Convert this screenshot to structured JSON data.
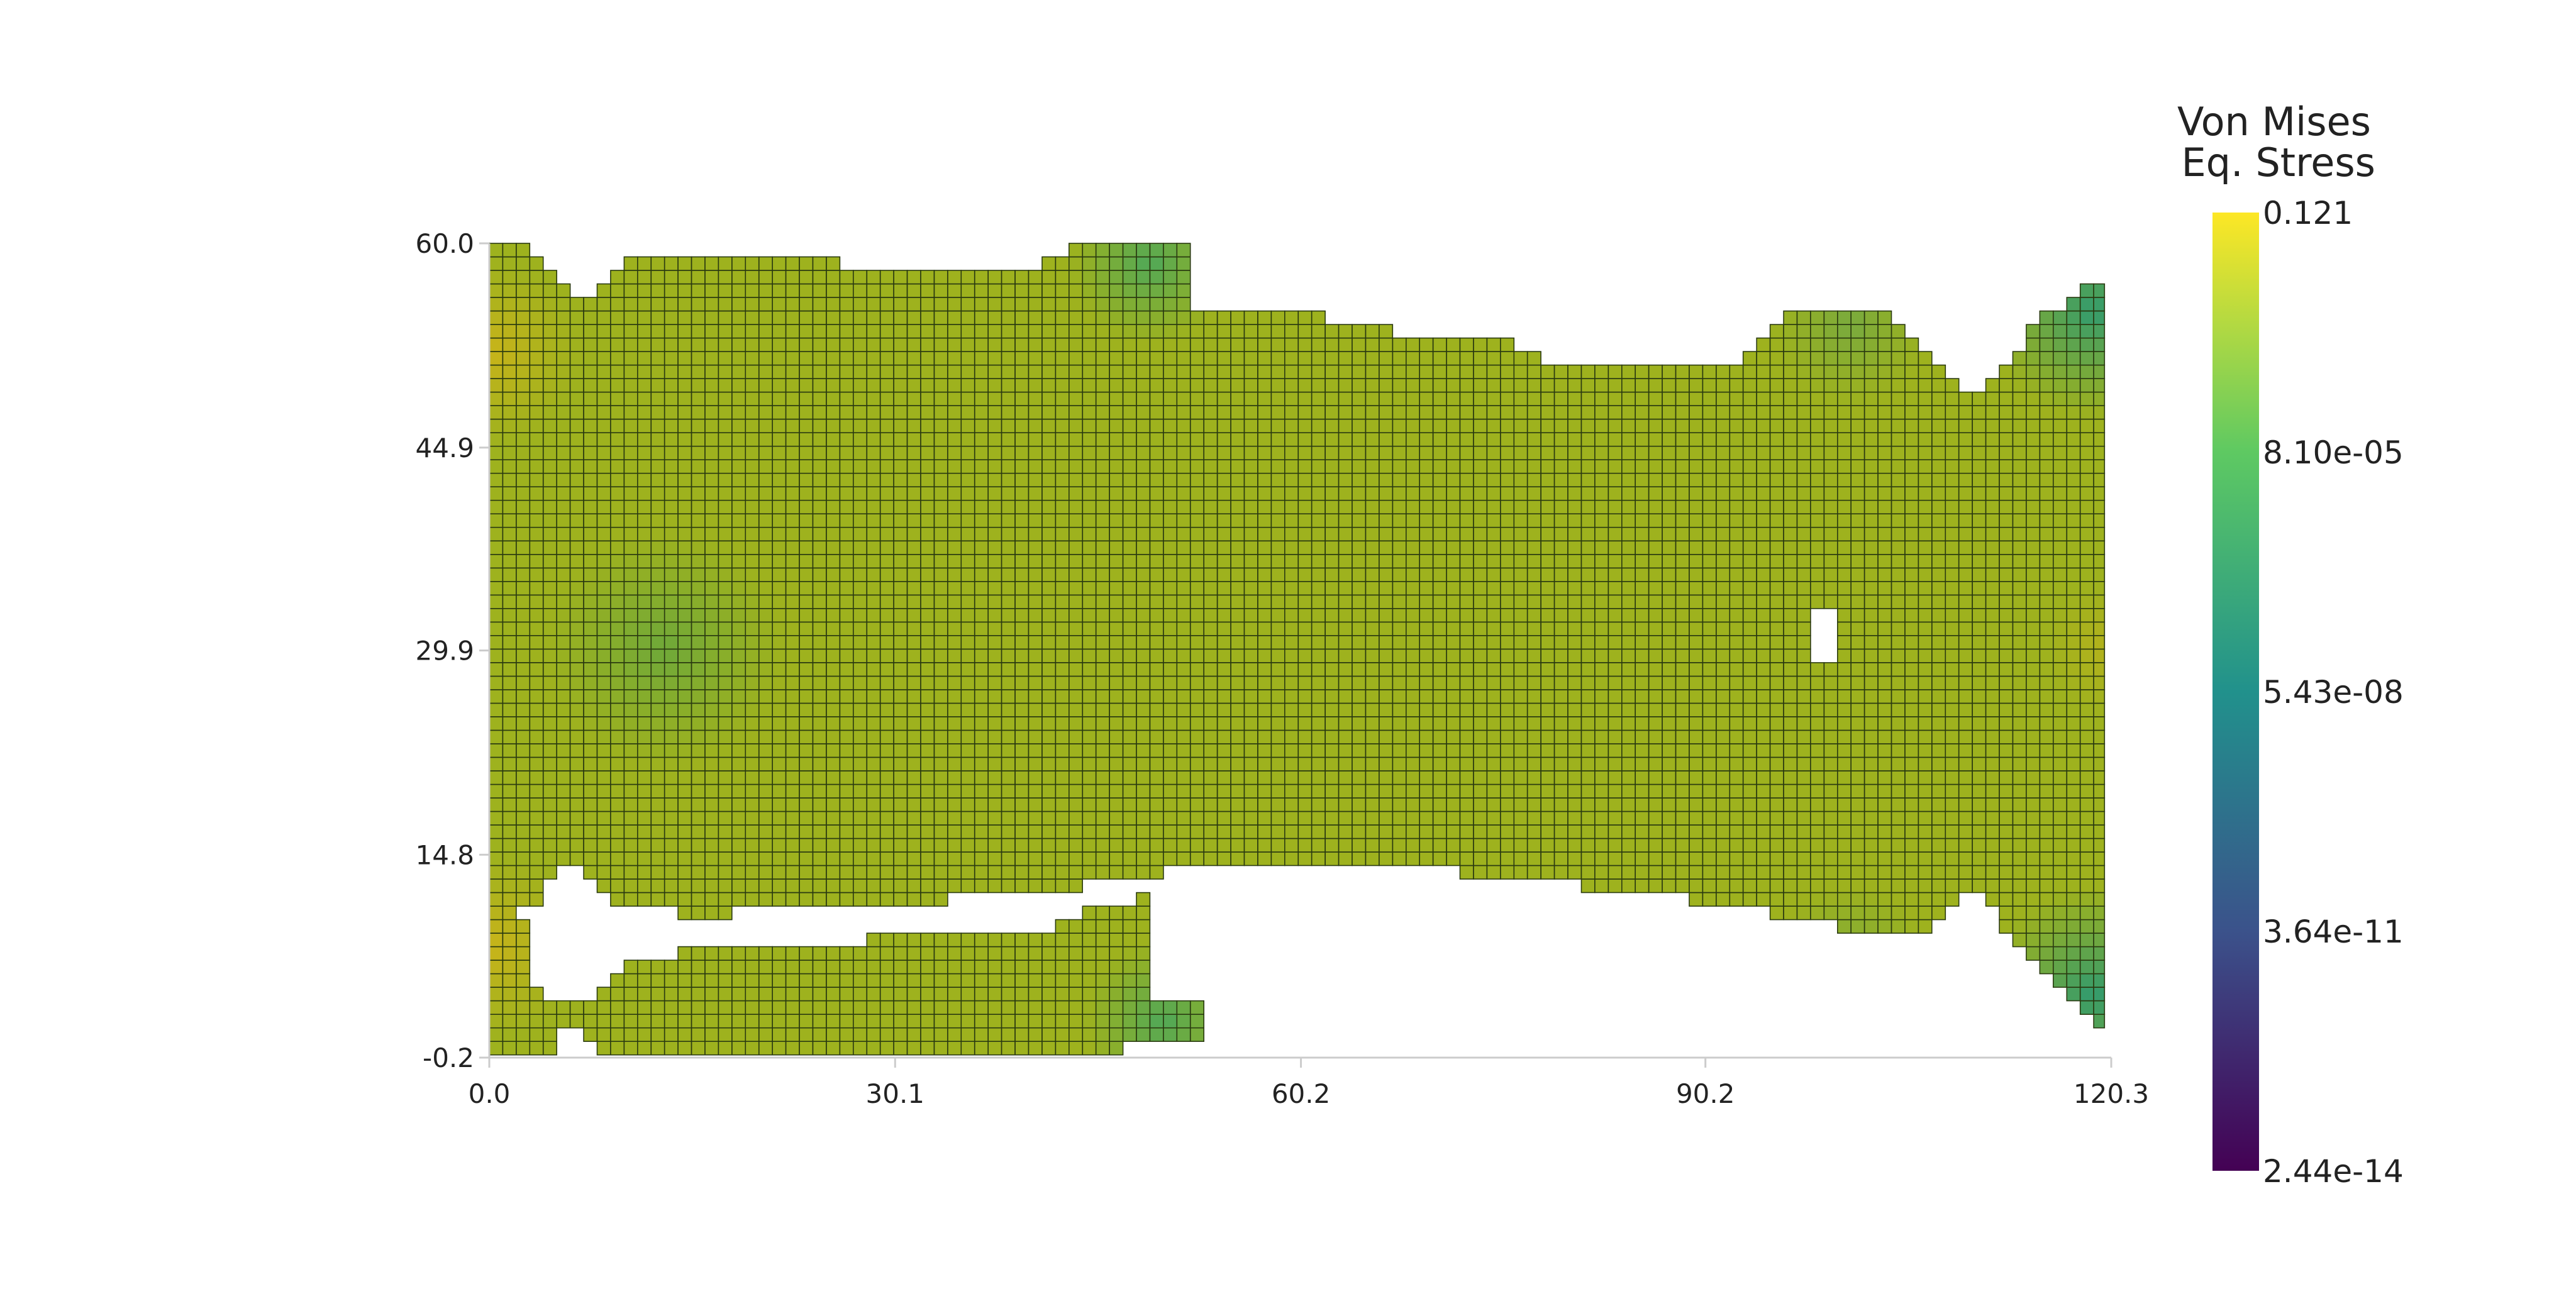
{
  "chart_data": {
    "type": "heatmap",
    "title": "",
    "xlabel": "",
    "ylabel": "",
    "xlim": [
      0.0,
      120.3
    ],
    "ylim": [
      -0.2,
      60.0
    ],
    "x_ticks": [
      "0.0",
      "30.1",
      "60.2",
      "90.2",
      "120.3"
    ],
    "y_ticks": [
      "60.0",
      "44.9",
      "29.9",
      "14.8",
      "-0.2"
    ],
    "colorbar": {
      "title_lines": [
        "Von Mises",
        "Eq. Stress"
      ],
      "labels": [
        "0.121",
        "8.10e-05",
        "5.43e-08",
        "3.64e-11",
        "2.44e-14"
      ],
      "min": 2.44e-14,
      "max": 0.121,
      "scale": "log",
      "colormap": [
        "#440154",
        "#3b528b",
        "#21918c",
        "#5ec962",
        "#fde725"
      ]
    },
    "mesh": {
      "element_size": 1.0,
      "edge_color": "#2a3a10",
      "top_profile": [
        [
          0,
          60.0
        ],
        [
          2,
          60.0
        ],
        [
          3,
          59.2
        ],
        [
          4,
          58.4
        ],
        [
          5,
          57.6
        ],
        [
          6,
          56.2
        ],
        [
          7,
          55.2
        ],
        [
          8,
          56.4
        ],
        [
          9,
          57.6
        ],
        [
          10,
          58.2
        ],
        [
          11,
          59.0
        ],
        [
          13,
          59.3
        ],
        [
          24,
          59.3
        ],
        [
          25,
          58.8
        ],
        [
          26,
          58.4
        ],
        [
          34,
          58.4
        ],
        [
          38,
          58.0
        ],
        [
          40,
          57.8
        ],
        [
          41,
          58.2
        ],
        [
          42,
          59.0
        ],
        [
          43,
          59.4
        ],
        [
          44,
          60.0
        ],
        [
          52,
          60.0
        ],
        [
          51,
          59.4
        ],
        [
          50,
          58.6
        ],
        [
          49,
          57.8
        ],
        [
          48,
          57.0
        ],
        [
          49,
          55.3
        ],
        [
          53,
          55.3
        ],
        [
          54,
          55.0
        ],
        [
          58,
          55.0
        ],
        [
          62,
          54.6
        ],
        [
          68,
          53.3
        ],
        [
          72,
          53.0
        ],
        [
          76,
          52.6
        ],
        [
          78,
          51.5
        ],
        [
          84,
          51.0
        ],
        [
          92,
          50.8
        ],
        [
          93,
          51.2
        ],
        [
          94,
          52.6
        ],
        [
          95,
          53.3
        ],
        [
          96,
          54.3
        ],
        [
          97,
          55.3
        ],
        [
          100,
          55.3
        ],
        [
          102,
          55.0
        ],
        [
          104,
          54.5
        ],
        [
          105,
          53.5
        ],
        [
          106,
          52.5
        ],
        [
          107,
          51.5
        ],
        [
          108,
          50.0
        ],
        [
          109,
          49.2
        ],
        [
          110,
          48.5
        ],
        [
          111,
          49.0
        ],
        [
          112,
          50.5
        ],
        [
          113,
          51.8
        ],
        [
          114,
          53.0
        ],
        [
          115,
          54.2
        ],
        [
          116,
          55.0
        ],
        [
          117,
          55.5
        ],
        [
          118,
          56.5
        ],
        [
          119,
          57.2
        ],
        [
          119.8,
          57.5
        ]
      ],
      "bottom_profile": [
        [
          0,
          10.0
        ],
        [
          1,
          9.5
        ],
        [
          2,
          10.5
        ],
        [
          3,
          11.0
        ],
        [
          4,
          12.0
        ],
        [
          5,
          13.2
        ],
        [
          6,
          14.8
        ],
        [
          7,
          13.8
        ],
        [
          8,
          12.5
        ],
        [
          9,
          11.4
        ],
        [
          11,
          11.0
        ],
        [
          14,
          10.5
        ],
        [
          18,
          10.5
        ],
        [
          21,
          10.6
        ],
        [
          24,
          11.0
        ],
        [
          27,
          11.3
        ],
        [
          30,
          11.4
        ],
        [
          34,
          11.5
        ],
        [
          40,
          11.8
        ],
        [
          44,
          12.4
        ],
        [
          48,
          13.3
        ],
        [
          52,
          13.7
        ],
        [
          60,
          14.0
        ],
        [
          66,
          14.2
        ],
        [
          70,
          14.0
        ],
        [
          76,
          12.8
        ],
        [
          84,
          12.3
        ],
        [
          88,
          11.7
        ],
        [
          94,
          10.8
        ],
        [
          100,
          9.5
        ],
        [
          104,
          9.0
        ],
        [
          107,
          9.5
        ],
        [
          108,
          10.8
        ],
        [
          109,
          11.8
        ],
        [
          110,
          12.5
        ],
        [
          111,
          11.5
        ],
        [
          112,
          10.0
        ],
        [
          113,
          8.6
        ],
        [
          114,
          7.8
        ],
        [
          115,
          6.9
        ],
        [
          116,
          5.9
        ],
        [
          117,
          4.9
        ],
        [
          118,
          3.8
        ],
        [
          119,
          2.9
        ],
        [
          119.8,
          2.0
        ]
      ],
      "bottom_notch": [
        [
          0,
          7.0
        ],
        [
          2,
          6.0
        ],
        [
          4,
          4.0
        ],
        [
          6,
          3.5
        ],
        [
          8,
          4.6
        ],
        [
          9,
          5.5
        ],
        [
          10,
          7.0
        ],
        [
          16,
          7.8
        ],
        [
          24,
          8.3
        ],
        [
          30,
          8.6
        ],
        [
          36,
          9.0
        ],
        [
          42,
          9.5
        ],
        [
          44,
          10.5
        ],
        [
          48,
          11.4
        ],
        [
          49,
          12.0
        ]
      ],
      "hole": {
        "x": [
          97.6,
          99.5
        ],
        "y": [
          29.0,
          32.9
        ]
      },
      "fields": [
        {
          "cx": 0.0,
          "cy": 52.0,
          "r": 7,
          "color": "#c9b41a"
        },
        {
          "cx": 0.0,
          "cy": 8.0,
          "r": 7,
          "color": "#c9b41a"
        },
        {
          "cx": 13.0,
          "cy": 30.0,
          "r": 9,
          "color": "#6ea83a"
        },
        {
          "cx": 50.0,
          "cy": 2.5,
          "r": 6,
          "color": "#4ea859"
        },
        {
          "cx": 49.0,
          "cy": 58.5,
          "r": 6,
          "color": "#4ea859"
        },
        {
          "cx": 119.0,
          "cy": 4.5,
          "r": 8,
          "color": "#2f9a70"
        },
        {
          "cx": 119.0,
          "cy": 55.0,
          "r": 8,
          "color": "#2f9a70"
        },
        {
          "cx": 101.0,
          "cy": 54.0,
          "r": 6,
          "color": "#78aa3e"
        },
        {
          "cx": 101.0,
          "cy": 6.5,
          "r": 6,
          "color": "#78aa3e"
        },
        {
          "cx": 120.0,
          "cy": 30.0,
          "r": 5,
          "color": "#b4b21c"
        }
      ],
      "base_color": "#9eb21e"
    }
  }
}
